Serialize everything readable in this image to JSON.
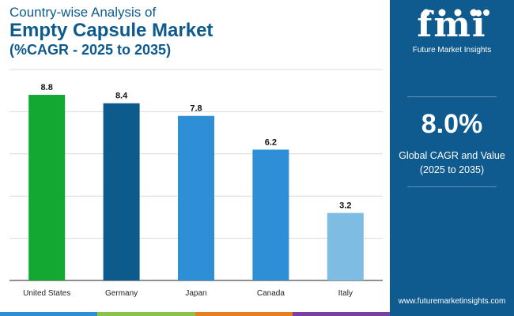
{
  "header": {
    "line1": "Country-wise Analysis of",
    "line2": "Empty Capsule Market",
    "line3": "(%CAGR - 2025 to 2035)"
  },
  "panel": {
    "brand_mark": "fmi",
    "brand_name": "Future Market Insights",
    "headline_value": "8.0%",
    "caption_line1": "Global CAGR and Value",
    "caption_line2": "(2025 to 2035)",
    "website": "www.futuremarketinsights.com",
    "background_color": "#0f5a8e"
  },
  "chart_data": {
    "type": "bar",
    "categories": [
      "United States",
      "Germany",
      "Japan",
      "Canada",
      "Italy"
    ],
    "values": [
      8.8,
      8.4,
      7.8,
      6.2,
      3.2
    ],
    "value_labels": [
      "8.8",
      "8.4",
      "7.8",
      "6.2",
      "3.2"
    ],
    "colors": [
      "#12a832",
      "#0d5a8c",
      "#2e8fd6",
      "#2e8fd6",
      "#7fbce3"
    ],
    "ylim": [
      0,
      10
    ],
    "grid": true,
    "legend": "none"
  },
  "footer_stripe_colors": [
    "#2e8fd6",
    "#8bc34a",
    "#e67e22",
    "#7b3fa0"
  ]
}
